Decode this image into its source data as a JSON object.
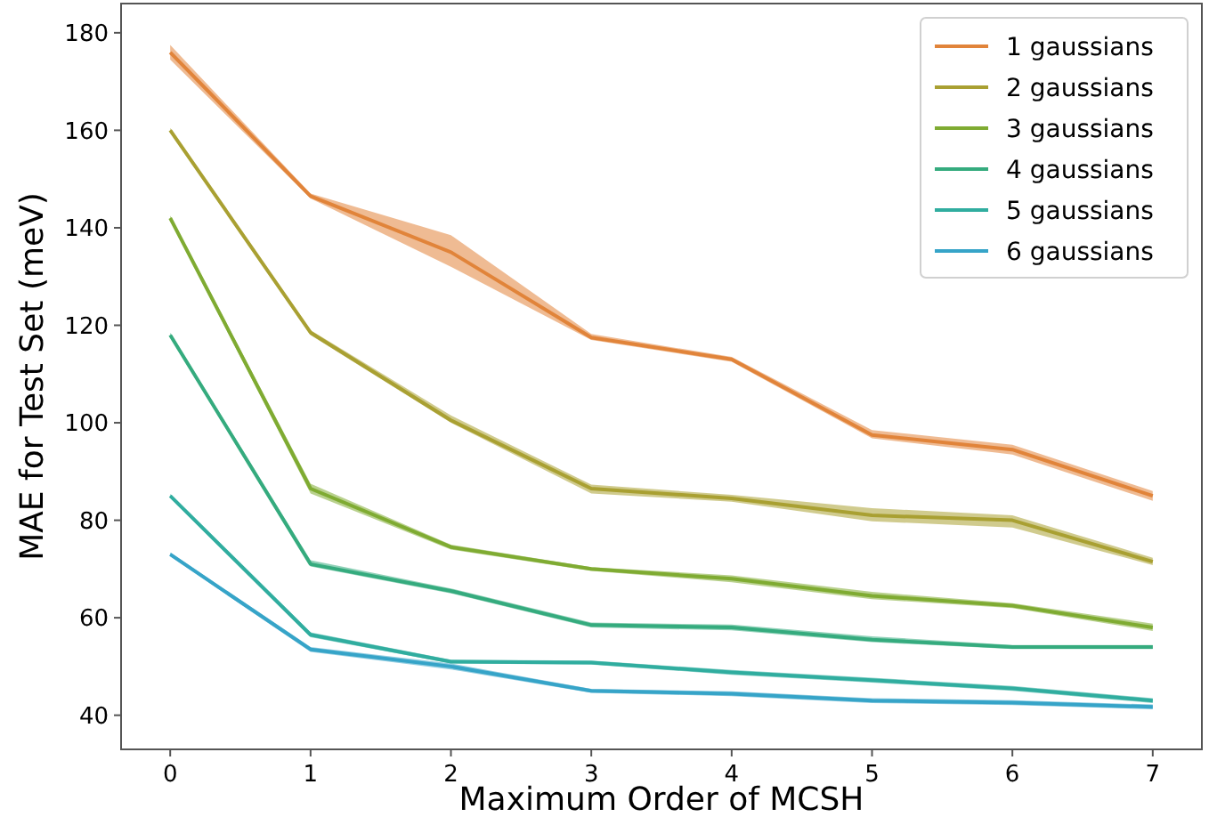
{
  "chart_data": {
    "type": "line",
    "xlabel": "Maximum Order of MCSH",
    "ylabel": "MAE for Test Set (meV)",
    "x": [
      0,
      1,
      2,
      3,
      4,
      5,
      6,
      7
    ],
    "xlim": [
      -0.35,
      7.35
    ],
    "ylim": [
      33,
      186
    ],
    "xticks": [
      0,
      1,
      2,
      3,
      4,
      5,
      6,
      7
    ],
    "yticks": [
      40,
      60,
      80,
      100,
      120,
      140,
      160,
      180
    ],
    "grid": false,
    "legend": "top right",
    "line_style": "solid",
    "marker": "none",
    "series": [
      {
        "name": "1 gaussians",
        "color": "#e1843a",
        "values": [
          176,
          146.5,
          135,
          117.5,
          113,
          97.5,
          94.5,
          85
        ],
        "lower": [
          174.5,
          146,
          132,
          117,
          112.5,
          96.8,
          93.5,
          84
        ],
        "upper": [
          177.5,
          147,
          138.5,
          118.2,
          113.5,
          98.5,
          95.5,
          86
        ]
      },
      {
        "name": "2 gaussians",
        "color": "#a9a032",
        "values": [
          160,
          118.5,
          100.5,
          86.5,
          84.5,
          81,
          80,
          71.5
        ],
        "lower": [
          159.5,
          118,
          100,
          85.5,
          83.8,
          79.8,
          78.5,
          70.8
        ],
        "upper": [
          160.5,
          119,
          101.5,
          87.3,
          85.2,
          82.5,
          81,
          72.3
        ]
      },
      {
        "name": "3 gaussians",
        "color": "#7fab32",
        "values": [
          142,
          86.5,
          74.5,
          70,
          68,
          64.5,
          62.5,
          58
        ],
        "lower": [
          141.5,
          85.5,
          74,
          69.6,
          67.3,
          63.8,
          62,
          57.3
        ],
        "upper": [
          142.5,
          87.5,
          75,
          70.4,
          68.7,
          65.3,
          63,
          58.8
        ]
      },
      {
        "name": "4 gaussians",
        "color": "#35ab7e",
        "values": [
          118,
          71,
          65.5,
          58.5,
          58,
          55.5,
          54,
          54
        ],
        "lower": [
          117.5,
          70.5,
          65,
          58,
          57.4,
          55,
          53.6,
          53.6
        ],
        "upper": [
          118.5,
          71.8,
          66,
          59,
          58.6,
          56.2,
          54.4,
          54.4
        ]
      },
      {
        "name": "5 gaussians",
        "color": "#30ad9f",
        "values": [
          85,
          56.5,
          51,
          50.8,
          48.8,
          47.2,
          45.5,
          43
        ],
        "lower": [
          84.6,
          56,
          50.6,
          50.4,
          48.3,
          46.7,
          45,
          42.5
        ],
        "upper": [
          85.4,
          57,
          51.4,
          51.2,
          49.3,
          47.7,
          46,
          43.5
        ]
      },
      {
        "name": "6 gaussians",
        "color": "#36a4c8",
        "values": [
          73,
          53.5,
          50,
          45,
          44.4,
          43,
          42.6,
          41.7
        ],
        "lower": [
          72.6,
          53,
          49.4,
          44.6,
          43.9,
          42.5,
          42.1,
          41.2
        ],
        "upper": [
          73.4,
          54,
          50.6,
          45.4,
          44.9,
          43.5,
          43.1,
          42.2
        ]
      }
    ]
  }
}
